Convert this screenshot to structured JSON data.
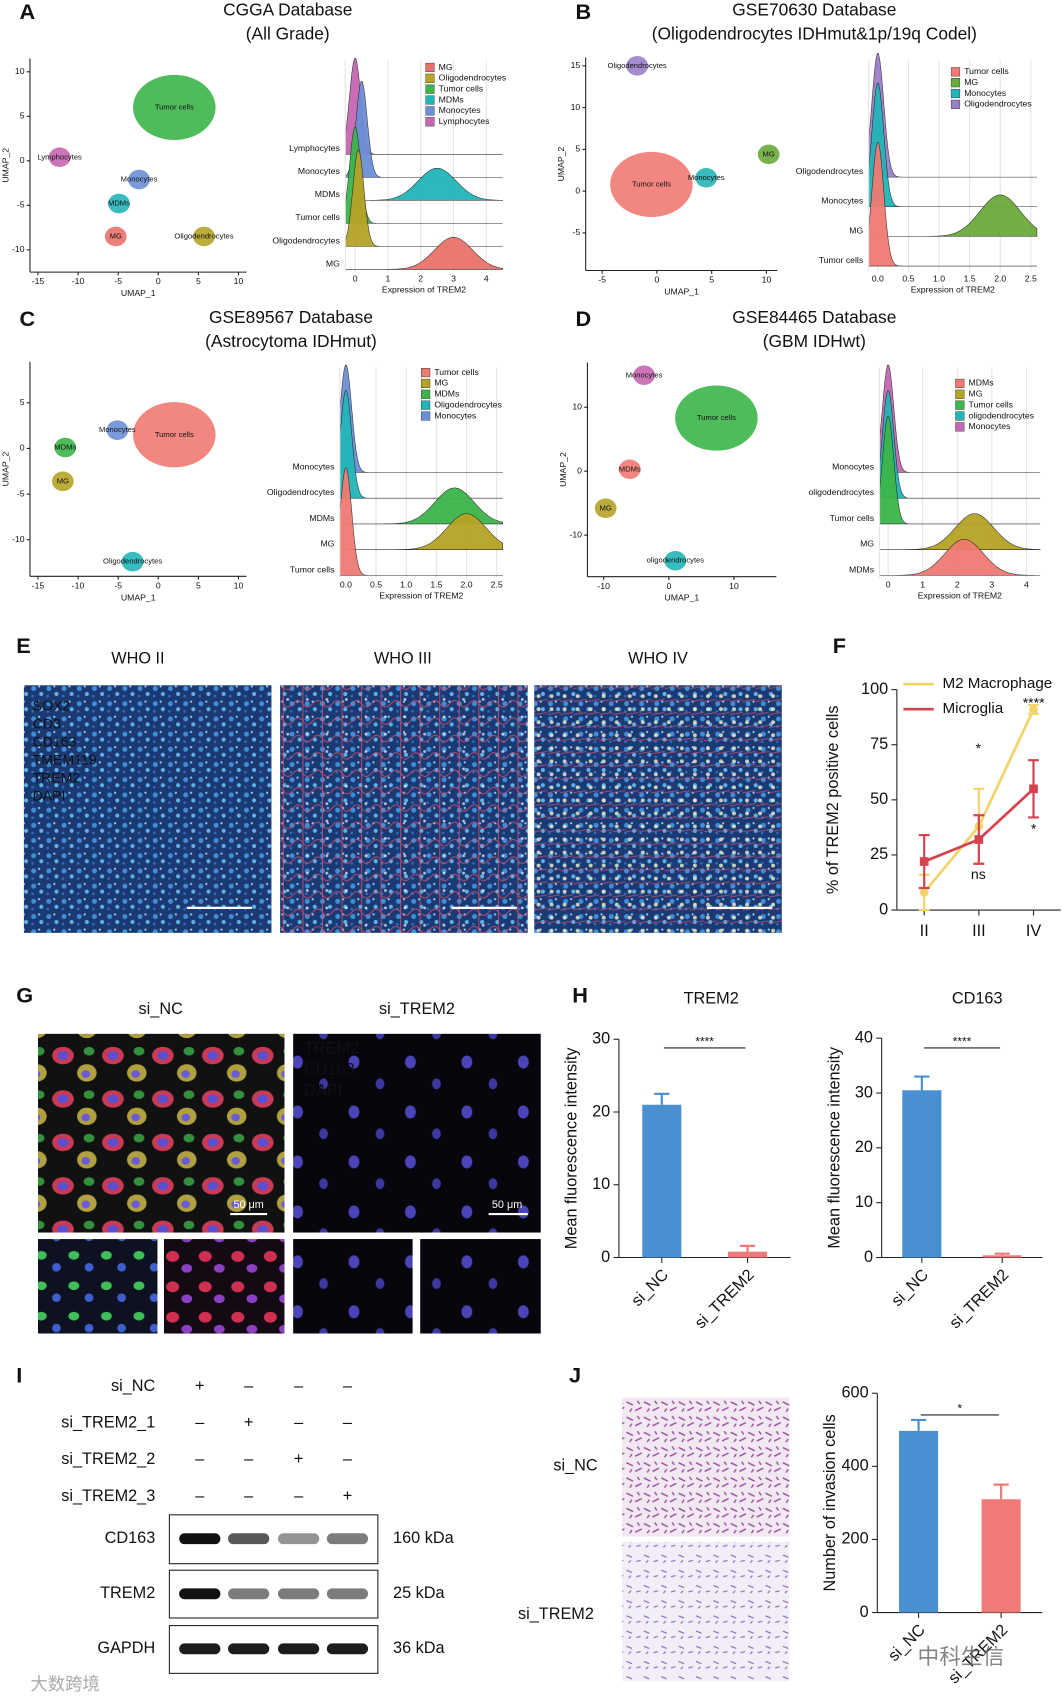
{
  "panel_labels": [
    "A",
    "B",
    "C",
    "D",
    "E",
    "F",
    "G",
    "H",
    "I",
    "J"
  ],
  "chart_data": [
    {
      "type": "scatter",
      "title": "CGGA Database",
      "subtitle": "(All Grade)",
      "xlabel": "UMAP_1",
      "ylabel": "UMAP_2",
      "xlim": [
        -16,
        11
      ],
      "xticks": [
        -15,
        -10,
        -5,
        0,
        5,
        10
      ],
      "ylim": [
        -12.5,
        11.5
      ],
      "yticks": [
        -10,
        -5,
        0,
        5,
        10
      ],
      "series": [
        {
          "name": "Tumor cells",
          "color": "#3cb54a",
          "x": [
            2
          ],
          "values": [
            6
          ]
        },
        {
          "name": "Lymphocytes",
          "color": "#c667b3",
          "x": [
            -12.3
          ],
          "values": [
            0.4
          ]
        },
        {
          "name": "Monocytes",
          "color": "#6c8fd6",
          "x": [
            -2.4
          ],
          "values": [
            -2.1
          ]
        },
        {
          "name": "MDMs",
          "color": "#22b5b8",
          "x": [
            -4.9
          ],
          "values": [
            -4.8
          ]
        },
        {
          "name": "MG",
          "color": "#e8726a",
          "x": [
            -5.3
          ],
          "values": [
            -8.5
          ]
        },
        {
          "name": "Oligodendrocytes",
          "color": "#b5a326",
          "x": [
            5.7
          ],
          "values": [
            -8.5
          ]
        }
      ]
    },
    {
      "type": "ridge",
      "xlabel": "Expression of TREM2",
      "xlim": [
        -0.3,
        4.5
      ],
      "xticks": [
        0,
        1,
        2,
        3,
        4
      ],
      "categories": [
        "Lymphocytes",
        "Monocytes",
        "MDMs",
        "Tumor cells",
        "Oligodendrocytes",
        "MG"
      ],
      "series": [
        {
          "name": "MG",
          "color": "#e8726a",
          "mode": 3.0
        },
        {
          "name": "Oligodendrocytes",
          "color": "#b5a326",
          "mode": 0.1
        },
        {
          "name": "Tumor cells",
          "color": "#3cb54a",
          "mode": 0
        },
        {
          "name": "MDMs",
          "color": "#22b5b8",
          "mode": 2.5
        },
        {
          "name": "Monocytes",
          "color": "#6c8fd6",
          "mode": 0.2
        },
        {
          "name": "Lymphocytes",
          "color": "#c667b3",
          "mode": 0
        }
      ]
    },
    {
      "type": "scatter",
      "title": "GSE70630 Database",
      "subtitle": "(Oligodendrocytes IDHmut&1p/19q Codel)",
      "xlabel": "UMAP_1",
      "ylabel": "UMAP_2",
      "xlim": [
        -6.5,
        11
      ],
      "xticks": [
        -5,
        0,
        5,
        10
      ],
      "ylim": [
        -9.5,
        16
      ],
      "yticks": [
        -5,
        0,
        5,
        10,
        15
      ],
      "series": [
        {
          "name": "Tumor cells",
          "color": "#f07a72",
          "x": [
            -0.5
          ],
          "values": [
            0.8
          ]
        },
        {
          "name": "MG",
          "color": "#6aaa3a",
          "x": [
            10.2
          ],
          "values": [
            4.4
          ]
        },
        {
          "name": "Monocytes",
          "color": "#22b5b8",
          "x": [
            4.5
          ],
          "values": [
            1.6
          ]
        },
        {
          "name": "Oligodendrocytes",
          "color": "#9b7fc9",
          "x": [
            -1.8
          ],
          "values": [
            15
          ]
        }
      ]
    },
    {
      "type": "ridge",
      "xlabel": "Expression of TREM2",
      "xlim": [
        -0.15,
        2.6
      ],
      "xticks": [
        {
          "value": 0,
          "label": "0.0"
        },
        0.5,
        {
          "value": 1,
          "label": "1.0"
        },
        1.5,
        {
          "value": 2,
          "label": "2.0"
        },
        2.5
      ],
      "categories": [
        "Oligodendrocytes",
        "Monocytes",
        "MG",
        "Tumor cells"
      ],
      "series": [
        {
          "name": "Tumor cells",
          "color": "#f07a72",
          "mode": 0
        },
        {
          "name": "MG",
          "color": "#6aaa3a",
          "mode": 2.0
        },
        {
          "name": "Monocytes",
          "color": "#22b5b8",
          "mode": 0
        },
        {
          "name": "Oligodendrocytes",
          "color": "#9b7fc9",
          "mode": 0
        }
      ]
    },
    {
      "type": "scatter",
      "title": "GSE89567 Database",
      "subtitle": "(Astrocytoma IDHmut)",
      "xlabel": "UMAP_1",
      "ylabel": "UMAP_2",
      "xlim": [
        -16,
        11
      ],
      "xticks": [
        -15,
        -10,
        -5,
        0,
        5,
        10
      ],
      "ylim": [
        -14,
        9.5
      ],
      "yticks": [
        -10,
        -5,
        0,
        5
      ],
      "series": [
        {
          "name": "Tumor cells",
          "color": "#f07a72",
          "x": [
            2
          ],
          "values": [
            1.5
          ]
        },
        {
          "name": "Monocytes",
          "color": "#6c8fd6",
          "x": [
            -5.1
          ],
          "values": [
            2
          ]
        },
        {
          "name": "MDMs",
          "color": "#3cb54a",
          "x": [
            -11.6
          ],
          "values": [
            0.1
          ]
        },
        {
          "name": "MG",
          "color": "#b5a326",
          "x": [
            -11.9
          ],
          "values": [
            -3.6
          ]
        },
        {
          "name": "Oligodendrocytes",
          "color": "#22b5b8",
          "x": [
            -3.2
          ],
          "values": [
            -12.4
          ]
        }
      ]
    },
    {
      "type": "ridge",
      "xlabel": "Expression of TREM2",
      "xlim": [
        -0.1,
        2.6
      ],
      "xticks": [
        {
          "value": 0,
          "label": "0.0"
        },
        0.5,
        {
          "value": 1,
          "label": "1.0"
        },
        1.5,
        {
          "value": 2,
          "label": "2.0"
        },
        2.5
      ],
      "categories": [
        "Monocytes",
        "Oligodendrocytes",
        "MDMs",
        "MG",
        "Tumor cells"
      ],
      "series": [
        {
          "name": "Tumor cells",
          "color": "#f07a72",
          "mode": 0
        },
        {
          "name": "MG",
          "color": "#b5a326",
          "mode": 2.0
        },
        {
          "name": "MDMs",
          "color": "#3cb54a",
          "mode": 1.8
        },
        {
          "name": "Oligodendrocytes",
          "color": "#22b5b8",
          "mode": 0
        },
        {
          "name": "Monocytes",
          "color": "#6c8fd6",
          "mode": 0
        }
      ]
    },
    {
      "type": "scatter",
      "title": "GSE84465 Database",
      "subtitle": "(GBM IDHwt)",
      "xlabel": "UMAP_1",
      "ylabel": "UMAP_2",
      "xlim": [
        -12.5,
        16.5
      ],
      "xticks": [
        -10,
        0,
        10
      ],
      "ylim": [
        -16.5,
        17
      ],
      "yticks": [
        -10,
        0,
        10
      ],
      "series": [
        {
          "name": "Tumor cells",
          "color": "#3cb54a",
          "x": [
            7.3
          ],
          "values": [
            8.3
          ]
        },
        {
          "name": "MDMs",
          "color": "#f07a72",
          "x": [
            -6
          ],
          "values": [
            0.3
          ]
        },
        {
          "name": "MG",
          "color": "#b5a326",
          "x": [
            -9.7
          ],
          "values": [
            -5.8
          ]
        },
        {
          "name": "Monocytes",
          "color": "#c667b3",
          "x": [
            -3.8
          ],
          "values": [
            15
          ]
        },
        {
          "name": "oligodendrocytes",
          "color": "#22b5b8",
          "x": [
            1
          ],
          "values": [
            -14
          ]
        }
      ]
    },
    {
      "type": "ridge",
      "xlabel": "Expression of TREM2",
      "xlim": [
        -0.25,
        4.4
      ],
      "xticks": [
        0,
        1,
        2,
        3,
        4
      ],
      "categories": [
        "Monocytes",
        "oligodendrocytes",
        "Tumor cells",
        "MG",
        "MDMs"
      ],
      "series": [
        {
          "name": "MDMs",
          "color": "#f07a72",
          "mode": 2.2
        },
        {
          "name": "MG",
          "color": "#b5a326",
          "mode": 2.5
        },
        {
          "name": "Tumor cells",
          "color": "#3cb54a",
          "mode": 0
        },
        {
          "name": "oligodendrocytes",
          "color": "#22b5b8",
          "mode": 0
        },
        {
          "name": "Monocytes",
          "color": "#c667b3",
          "mode": 0
        }
      ]
    },
    {
      "type": "line",
      "ylabel": "% of TREM2 positive cells",
      "categories": [
        "II",
        "III",
        "IV"
      ],
      "ylim": [
        0,
        100
      ],
      "yticks": [
        0,
        25,
        50,
        75,
        100
      ],
      "legend": "top",
      "series": [
        {
          "name": "M2 Macrophage",
          "color": "#f2d46b",
          "values": [
            8,
            38,
            91
          ],
          "errors": [
            8,
            17,
            2
          ]
        },
        {
          "name": "Microglia",
          "color": "#d6434f",
          "values": [
            22,
            32,
            55
          ],
          "errors": [
            12,
            11,
            13
          ]
        }
      ],
      "annotations": [
        "*",
        "ns",
        "****",
        "*"
      ]
    },
    {
      "type": "bar",
      "title": "TREM2",
      "ylabel": "Mean fluorescence intensity",
      "categories": [
        "si_NC",
        "si_TREM2"
      ],
      "ylim": [
        0,
        30
      ],
      "yticks": [
        0,
        10,
        20,
        30
      ],
      "values": [
        21,
        0.8
      ],
      "errors": [
        1.5,
        0.8
      ],
      "colors": [
        "#4a8fd0",
        "#f07a78"
      ],
      "significance": "****"
    },
    {
      "type": "bar",
      "title": "CD163",
      "ylabel": "Mean fluorescence intensity",
      "categories": [
        "si_NC",
        "si_TREM2"
      ],
      "ylim": [
        0,
        40
      ],
      "yticks": [
        0,
        10,
        20,
        30,
        40
      ],
      "values": [
        30.5,
        0.4
      ],
      "errors": [
        2.5,
        0.3
      ],
      "colors": [
        "#4a8fd0",
        "#f07a78"
      ],
      "significance": "****"
    },
    {
      "type": "bar",
      "ylabel": "Number of invasion cells",
      "categories": [
        "si_NC",
        "si_TREM2"
      ],
      "ylim": [
        0,
        600
      ],
      "yticks": [
        0,
        200,
        400,
        600
      ],
      "values": [
        497,
        310
      ],
      "errors": [
        30,
        40
      ],
      "colors": [
        "#4a8fd0",
        "#f07a78"
      ],
      "significance": "*"
    }
  ],
  "figure": {
    "E": {
      "titles": [
        "WHO II",
        "WHO III",
        "WHO IV"
      ],
      "stains": [
        {
          "name": "SOX2",
          "color": "#9aa3b5"
        },
        {
          "name": "CD3",
          "color": "#6fbf3f"
        },
        {
          "name": "CD163",
          "color": "#ffee66"
        },
        {
          "name": "TMEM119",
          "color": "#e83a3a"
        },
        {
          "name": "TREM2",
          "color": "#ffffff"
        },
        {
          "name": "DAPI",
          "color": "#3e5fb0"
        }
      ]
    },
    "G": {
      "conditions": [
        "si_NC",
        "si_TREM2"
      ],
      "stains": [
        {
          "name": "TREM2",
          "color": "#3fd05a"
        },
        {
          "name": "CD163",
          "color": "#ff2b2b"
        },
        {
          "name": "DAPI",
          "color": "#3d4fe0"
        }
      ],
      "scale_bars": [
        "50 μm",
        "50 μm"
      ]
    },
    "I": {
      "conditions": [
        {
          "label": "si_NC",
          "marks": [
            "+",
            "–",
            "–",
            "–"
          ]
        },
        {
          "label": "si_TREM2_1",
          "marks": [
            "–",
            "+",
            "–",
            "–"
          ]
        },
        {
          "label": "si_TREM2_2",
          "marks": [
            "–",
            "–",
            "+",
            "–"
          ]
        },
        {
          "label": "si_TREM2_3",
          "marks": [
            "–",
            "–",
            "–",
            "+"
          ]
        }
      ],
      "blots": [
        {
          "protein": "CD163",
          "size": "160 kDa"
        },
        {
          "protein": "TREM2",
          "size": "25 kDa"
        },
        {
          "protein": "GAPDH",
          "size": "36 kDa"
        }
      ]
    },
    "J": {
      "conditions": [
        "si_NC",
        "si_TREM2"
      ]
    },
    "watermarks": [
      "中科生信",
      "大数跨境"
    ]
  }
}
